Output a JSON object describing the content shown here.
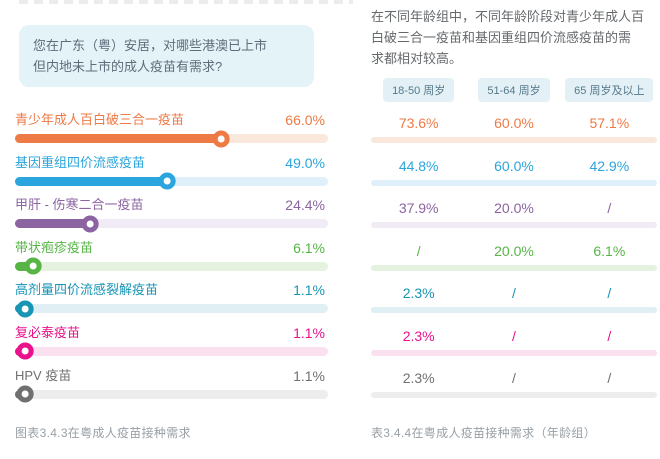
{
  "left_panel": {
    "question": "您在广东（粤）安居，对哪些港澳已上市\n但内地未上市的成人疫苗有需求?",
    "rows": [
      {
        "label": "青少年成人百白破三合一疫苗",
        "value": "66.0%",
        "pct": 66.0,
        "color": "#ee7a45",
        "track": "#fbe8dd"
      },
      {
        "label": "基因重组四价流感疫苗",
        "value": "49.0%",
        "pct": 49.0,
        "color": "#2ba5dd",
        "track": "#dff0fa"
      },
      {
        "label": "甲肝 - 伤寒二合一疫苗",
        "value": "24.4%",
        "pct": 24.4,
        "color": "#8b64a1",
        "track": "#f0ebf4"
      },
      {
        "label": "带状疱疹疫苗",
        "value": "6.1%",
        "pct": 6.1,
        "color": "#57b546",
        "track": "#e5f2e0"
      },
      {
        "label": "高剂量四价流感裂解疫苗",
        "value": "1.1%",
        "pct": 1.1,
        "color": "#1894b4",
        "track": "#dfeff4"
      },
      {
        "label": "复必泰疫苗",
        "value": "1.1%",
        "pct": 1.1,
        "color": "#e9118c",
        "track": "#fbe1ef"
      },
      {
        "label": "HPV 疫苗",
        "value": "1.1%",
        "pct": 1.1,
        "color": "#707070",
        "track": "#ededed"
      }
    ],
    "caption": "图表3.4.3在粤成人疫苗接种需求"
  },
  "right_panel": {
    "intro": "在不同年龄组中，不同年龄阶段对青少年成人百\n白破三合一疫苗和基因重组四价流感疫苗的需\n求都相对较高。",
    "age_groups": [
      "18-50 周岁",
      "51-64 周岁",
      "65 周岁及以上"
    ],
    "rows": [
      {
        "values": [
          "73.6%",
          "60.0%",
          "57.1%"
        ],
        "color": "#ee7a45",
        "track": "#fbe8dd"
      },
      {
        "values": [
          "44.8%",
          "60.0%",
          "42.9%"
        ],
        "color": "#2ba5dd",
        "track": "#dff0fa"
      },
      {
        "values": [
          "37.9%",
          "20.0%",
          "/"
        ],
        "color": "#8b64a1",
        "track": "#f0ebf4"
      },
      {
        "values": [
          "/",
          "20.0%",
          "6.1%"
        ],
        "color": "#57b546",
        "track": "#e5f2e0"
      },
      {
        "values": [
          "2.3%",
          "/",
          "/"
        ],
        "color": "#1894b4",
        "track": "#dfeff4"
      },
      {
        "values": [
          "2.3%",
          "/",
          "/"
        ],
        "color": "#e9118c",
        "track": "#fbe1ef"
      },
      {
        "values": [
          "2.3%",
          "/",
          "/"
        ],
        "color": "#707070",
        "track": "#ededed"
      }
    ],
    "caption": "表3.4.4在粤成人疫苗接种需求（年龄组）"
  },
  "chart_data": {
    "type": "bar",
    "orientation": "horizontal",
    "title": "您在广东（粤）安居，对哪些港澳已上市但内地未上市的成人疫苗有需求?",
    "categories": [
      "青少年成人百白破三合一疫苗",
      "基因重组四价流感疫苗",
      "甲肝 - 伤寒二合一疫苗",
      "带状疱疹疫苗",
      "高剂量四价流感裂解疫苗",
      "复必泰疫苗",
      "HPV 疫苗"
    ],
    "values": [
      66.0,
      49.0,
      24.4,
      6.1,
      1.1,
      1.1,
      1.1
    ],
    "value_unit": "%",
    "xlim": [
      0,
      100
    ],
    "series_colors": [
      "#ee7a45",
      "#2ba5dd",
      "#8b64a1",
      "#57b546",
      "#1894b4",
      "#e9118c",
      "#707070"
    ],
    "age_group_table": {
      "columns": [
        "18-50 周岁",
        "51-64 周岁",
        "65 周岁及以上"
      ],
      "rows": [
        [
          73.6,
          60.0,
          57.1
        ],
        [
          44.8,
          60.0,
          42.9
        ],
        [
          37.9,
          20.0,
          null
        ],
        [
          null,
          20.0,
          6.1
        ],
        [
          2.3,
          null,
          null
        ],
        [
          2.3,
          null,
          null
        ],
        [
          2.3,
          null,
          null
        ]
      ],
      "null_display": "/"
    },
    "annotations": [
      "在不同年龄组中，不同年龄阶段对青少年成人百白破三合一疫苗和基因重组四价流感疫苗的需求都相对较高。"
    ],
    "captions": [
      "图表3.4.3在粤成人疫苗接种需求",
      "表3.4.4在粤成人疫苗接种需求（年龄组）"
    ]
  }
}
